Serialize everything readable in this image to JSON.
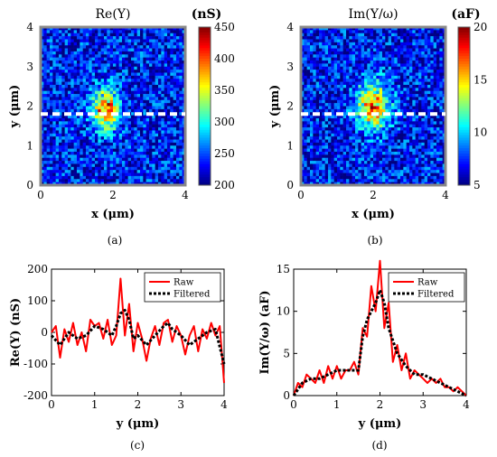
{
  "captions": [
    "(a)",
    "(b)",
    "(c)",
    "(d)"
  ],
  "chart_data": [
    {
      "type": "heatmap",
      "title": "Re(Y)",
      "xlabel": "x (μm)",
      "ylabel": "y (μm)",
      "xlim": [
        0,
        4
      ],
      "ylim": [
        0,
        4
      ],
      "xticks": [
        "0",
        "2",
        "4"
      ],
      "yticks": [
        "0",
        "1",
        "2",
        "3",
        "4"
      ],
      "colorbar": {
        "unit": "(nS)",
        "range": [
          200,
          450
        ],
        "ticks": [
          "450",
          "400",
          "350",
          "300",
          "250",
          "200"
        ]
      },
      "hotspot": {
        "x": 1.8,
        "y": 1.9,
        "peak": 440
      },
      "cut_line_y": 1.8,
      "background_level": 235
    },
    {
      "type": "heatmap",
      "title": "Im(Y/ω)",
      "xlabel": "x (μm)",
      "ylabel": "y (μm)",
      "xlim": [
        0,
        4
      ],
      "ylim": [
        0,
        4
      ],
      "xticks": [
        "0",
        "2",
        "4"
      ],
      "yticks": [
        "0",
        "1",
        "2",
        "3",
        "4"
      ],
      "colorbar": {
        "unit": "(aF)",
        "range": [
          5,
          20
        ],
        "ticks": [
          "20",
          "15",
          "10",
          "5"
        ]
      },
      "hotspot": {
        "x": 2.0,
        "y": 2.0,
        "peak": 18
      },
      "cut_line_y": 1.8,
      "background_level": 7
    },
    {
      "type": "line",
      "xlabel": "y (μm)",
      "ylabel": "Re(Y) (nS)",
      "xlim": [
        0,
        4
      ],
      "ylim": [
        -200,
        200
      ],
      "xticks": [
        "0",
        "1",
        "2",
        "3",
        "4"
      ],
      "yticks": [
        "200",
        "100",
        "0",
        "-100",
        "-200"
      ],
      "series": [
        {
          "name": "Raw",
          "color": "#ff0000",
          "style": "solid",
          "x": [
            0,
            0.1,
            0.2,
            0.3,
            0.4,
            0.5,
            0.6,
            0.7,
            0.8,
            0.9,
            1.0,
            1.1,
            1.2,
            1.3,
            1.4,
            1.5,
            1.6,
            1.7,
            1.8,
            1.9,
            2.0,
            2.1,
            2.2,
            2.3,
            2.4,
            2.5,
            2.6,
            2.7,
            2.8,
            2.9,
            3.0,
            3.1,
            3.2,
            3.3,
            3.4,
            3.5,
            3.6,
            3.7,
            3.8,
            3.9,
            4.0
          ],
          "y": [
            0,
            20,
            -80,
            10,
            -30,
            30,
            -40,
            0,
            -60,
            40,
            20,
            30,
            -20,
            40,
            -40,
            -10,
            170,
            -10,
            90,
            -60,
            30,
            -20,
            -90,
            -20,
            20,
            -40,
            30,
            40,
            -30,
            20,
            -10,
            -70,
            -10,
            20,
            -60,
            10,
            -20,
            30,
            -10,
            20,
            -160
          ]
        },
        {
          "name": "Filtered",
          "color": "#000000",
          "style": "dotted",
          "x": [
            0,
            0.2,
            0.4,
            0.6,
            0.8,
            1.0,
            1.2,
            1.4,
            1.5,
            1.6,
            1.7,
            1.8,
            1.9,
            2.0,
            2.2,
            2.4,
            2.6,
            2.7,
            2.8,
            3.0,
            3.2,
            3.4,
            3.6,
            3.8,
            4.0
          ],
          "y": [
            -10,
            -40,
            0,
            -20,
            -10,
            20,
            10,
            -10,
            20,
            60,
            70,
            40,
            -20,
            -10,
            -40,
            -10,
            20,
            30,
            10,
            -10,
            -40,
            -20,
            0,
            10,
            -100
          ]
        }
      ],
      "legend": "top-right"
    },
    {
      "type": "line",
      "xlabel": "y (μm)",
      "ylabel": "Im(Y/ω) (aF)",
      "xlim": [
        0,
        4
      ],
      "ylim": [
        0,
        15
      ],
      "xticks": [
        "0",
        "1",
        "2",
        "3",
        "4"
      ],
      "yticks": [
        "15",
        "10",
        "5",
        "0"
      ],
      "series": [
        {
          "name": "Raw",
          "color": "#ff0000",
          "style": "solid",
          "x": [
            0,
            0.1,
            0.2,
            0.3,
            0.4,
            0.5,
            0.6,
            0.7,
            0.8,
            0.9,
            1.0,
            1.1,
            1.2,
            1.3,
            1.4,
            1.5,
            1.6,
            1.7,
            1.8,
            1.9,
            2.0,
            2.1,
            2.2,
            2.3,
            2.4,
            2.5,
            2.6,
            2.7,
            2.8,
            2.9,
            3.0,
            3.1,
            3.2,
            3.3,
            3.4,
            3.5,
            3.6,
            3.7,
            3.8,
            3.9,
            4.0
          ],
          "y": [
            0,
            1.5,
            1,
            2.5,
            2,
            1.5,
            3,
            1.5,
            3.5,
            2,
            3.5,
            2,
            3,
            3,
            4,
            2.5,
            8,
            7,
            13,
            10,
            16,
            8,
            11,
            4,
            6,
            3,
            5,
            2,
            3,
            2.5,
            2,
            1.5,
            2,
            1.5,
            2,
            1,
            1,
            0.5,
            1,
            0.5,
            0
          ]
        },
        {
          "name": "Filtered",
          "color": "#000000",
          "style": "dotted",
          "x": [
            0,
            0.2,
            0.4,
            0.6,
            0.8,
            1.0,
            1.2,
            1.4,
            1.5,
            1.6,
            1.7,
            1.8,
            1.9,
            2.0,
            2.1,
            2.2,
            2.4,
            2.6,
            2.8,
            3.0,
            3.2,
            3.4,
            3.6,
            3.8,
            4.0
          ],
          "y": [
            0,
            1.5,
            2,
            2,
            2.5,
            3,
            3,
            3,
            3,
            7,
            9,
            10,
            11,
            12.5,
            11,
            8,
            5,
            3.5,
            2.5,
            2.5,
            2,
            1.5,
            1,
            0.5,
            0
          ]
        }
      ],
      "legend": "top-right"
    }
  ]
}
